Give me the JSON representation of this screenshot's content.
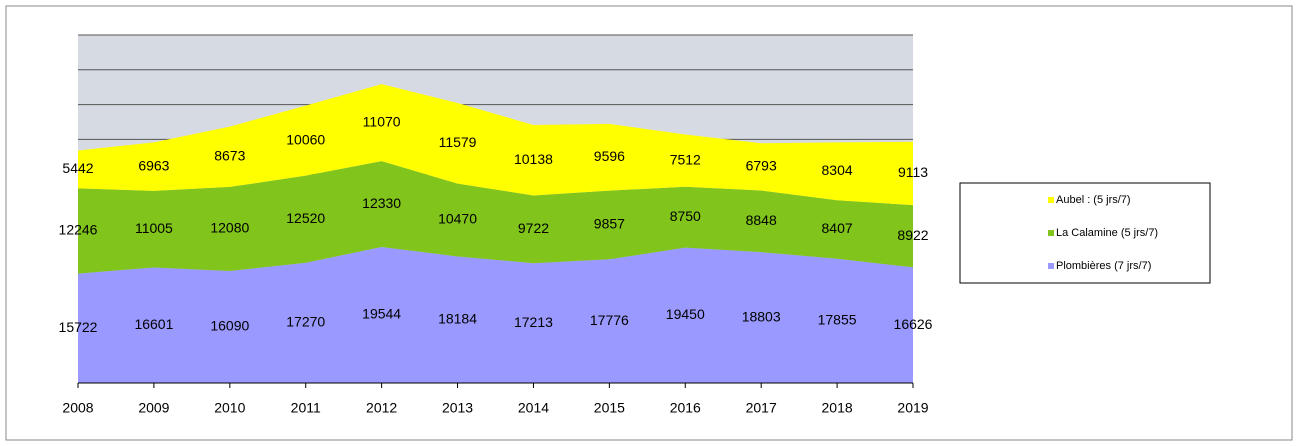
{
  "chart_data": {
    "type": "stacked_area",
    "categories": [
      "2008",
      "2009",
      "2010",
      "2011",
      "2012",
      "2013",
      "2014",
      "2015",
      "2016",
      "2017",
      "2018",
      "2019"
    ],
    "series": [
      {
        "name": "Aubel : (5 jrs/7)",
        "color": "#ffff00",
        "values": [
          5442,
          6963,
          8673,
          10060,
          11070,
          11579,
          10138,
          9596,
          7512,
          6793,
          8304,
          9113
        ]
      },
      {
        "name": "La Calamine (5 jrs/7)",
        "color": "#80c41c",
        "values": [
          12246,
          11005,
          12080,
          12520,
          12330,
          10470,
          9722,
          9857,
          8750,
          8848,
          8407,
          8922
        ]
      },
      {
        "name": "Plombières (7 jrs/7)",
        "color": "#9999ff",
        "values": [
          15722,
          16601,
          16090,
          17270,
          19544,
          18184,
          17213,
          17776,
          19450,
          18803,
          17855,
          16626
        ]
      }
    ],
    "ylim": [
      0,
      50000
    ],
    "yticks": [
      0,
      5000,
      10000,
      15000,
      20000,
      25000,
      30000,
      35000,
      40000,
      45000,
      50000
    ],
    "grid": true
  }
}
